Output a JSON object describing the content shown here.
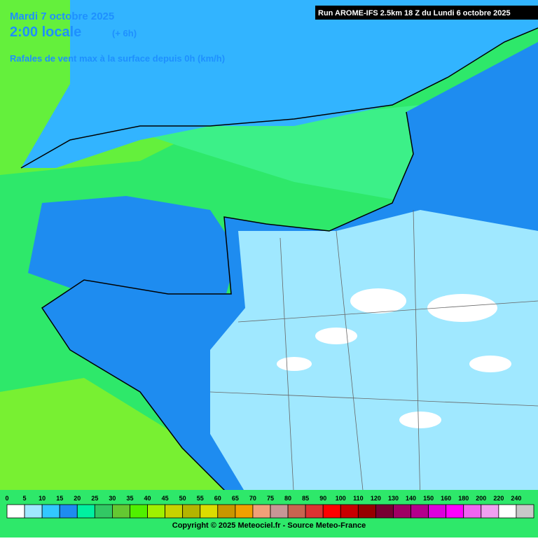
{
  "header": {
    "date": "Mardi 7 octobre 2025",
    "time": "2:00 locale",
    "lead": "(+ 6h)",
    "subtitle": "Rafales de vent max à la surface depuis 0h (km/h)",
    "run": "Run AROME-IFS 2.5km 18 Z du Lundi 6 octobre 2025"
  },
  "legend": {
    "labels": [
      0,
      5,
      10,
      15,
      20,
      25,
      30,
      35,
      40,
      45,
      50,
      55,
      60,
      65,
      70,
      75,
      80,
      85,
      90,
      100,
      110,
      120,
      130,
      140,
      150,
      160,
      180,
      200,
      220,
      240
    ],
    "colors": [
      "#ffffff",
      "#a0e8ff",
      "#32c8ff",
      "#1e8cf0",
      "#00f0a0",
      "#32c864",
      "#64c832",
      "#50f000",
      "#a0f000",
      "#c8d200",
      "#b4b400",
      "#dcdc00",
      "#c89600",
      "#f0a000",
      "#f0a078",
      "#c89696",
      "#c86450",
      "#dc3232",
      "#ff0000",
      "#c80000",
      "#960000",
      "#780032",
      "#a00064",
      "#b4008c",
      "#dc00dc",
      "#ff00ff",
      "#f064f0",
      "#f0a0f0",
      "#ffffff",
      "#c8c8c8"
    ]
  },
  "footer": {
    "copyright": "Copyright © 2025 Meteociel.fr - Source Meteo-France"
  }
}
